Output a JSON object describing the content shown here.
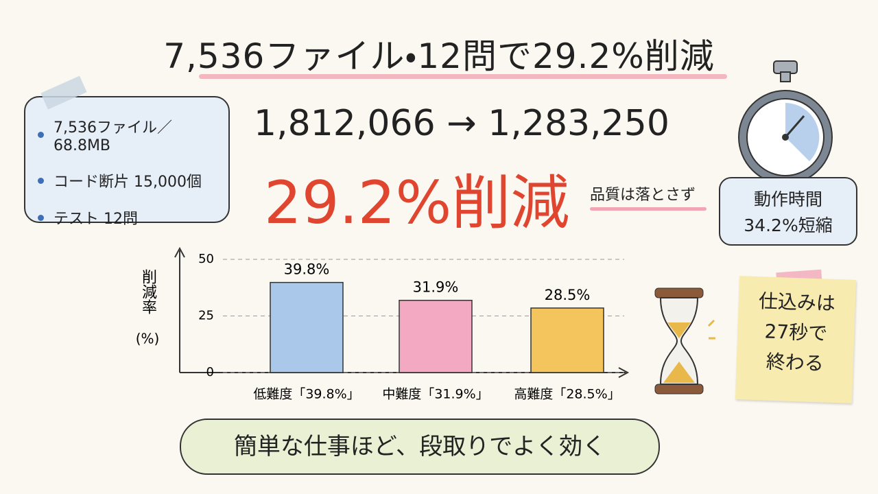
{
  "title": "7,536ファイル・12問で29.2%削減",
  "stats": [
    "7,536ファイル／68.8MB",
    "コード断片 15,000個",
    "テスト 12問"
  ],
  "comparison": "1,812,066 → 1,283,250",
  "headline": "29.2%削減",
  "note": "品質は落とさず",
  "stopwatch": [
    "動作時間",
    "34.2%短縮"
  ],
  "sticky": [
    "仕込みは",
    "27秒で",
    "終わる"
  ],
  "bubble": "簡単な仕事ほど、段取りでよく効く",
  "chart_data": {
    "type": "bar",
    "ylabel": "削減率",
    "yunit": "(%)",
    "categories": [
      "低難度「39.8%」",
      "中難度「31.9%」",
      "高難度「28.5%」"
    ],
    "values": [
      39.8,
      31.9,
      28.5
    ],
    "value_labels": [
      "39.8%",
      "31.9%",
      "28.5%"
    ],
    "colors": [
      "#a9c8ea",
      "#f3a9c2",
      "#f3c55c"
    ],
    "ylim": [
      0,
      50
    ],
    "yticks": [
      0,
      25,
      50
    ],
    "grid": true
  }
}
